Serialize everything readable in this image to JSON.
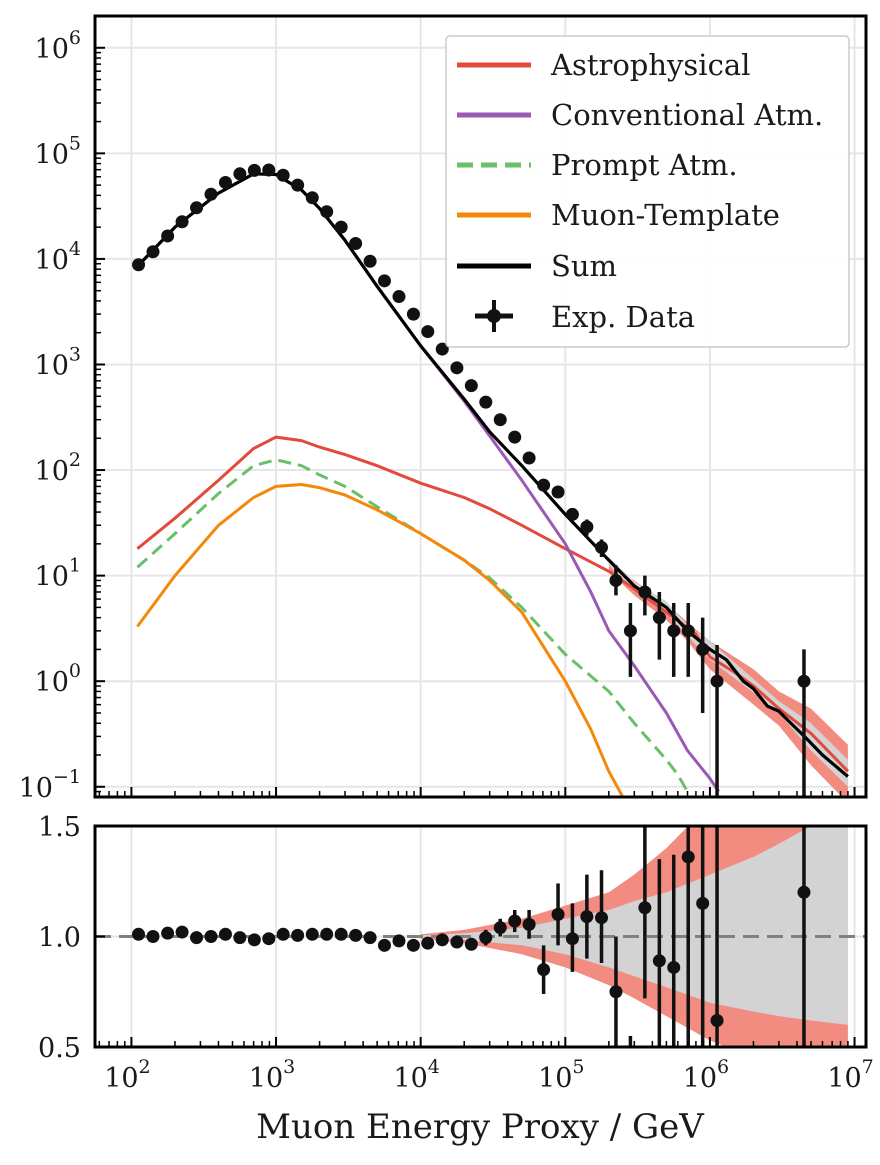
{
  "chart_data": [
    {
      "type": "line",
      "panel": "main",
      "xscale": "log",
      "yscale": "log",
      "xlim": [
        56,
        12000000
      ],
      "ylim": [
        0.08,
        2000000
      ],
      "grid": true,
      "legend_position": "top-right",
      "y_ticks": [
        {
          "value": 0.1,
          "base": "10",
          "exp": "−1"
        },
        {
          "value": 1,
          "base": "10",
          "exp": "0"
        },
        {
          "value": 10,
          "base": "10",
          "exp": "1"
        },
        {
          "value": 100,
          "base": "10",
          "exp": "2"
        },
        {
          "value": 1000,
          "base": "10",
          "exp": "3"
        },
        {
          "value": 10000,
          "base": "10",
          "exp": "4"
        },
        {
          "value": 100000,
          "base": "10",
          "exp": "5"
        },
        {
          "value": 1000000,
          "base": "10",
          "exp": "6"
        }
      ],
      "series": [
        {
          "name": "Astrophysical",
          "color": "#e24a3b",
          "style": "solid",
          "x": [
            110,
            200,
            400,
            700,
            1000,
            1500,
            2000,
            3000,
            5000,
            10000,
            20000,
            30000,
            50000,
            100000,
            200000,
            300000,
            500000,
            800000,
            1000000,
            1500000,
            2000000,
            3000000,
            5000000,
            9000000
          ],
          "y": [
            18,
            35,
            80,
            160,
            205,
            190,
            165,
            140,
            110,
            75,
            55,
            43,
            30,
            18,
            11,
            7.5,
            4.5,
            2.8,
            1.7,
            1.2,
            0.9,
            0.55,
            0.32,
            0.14
          ]
        },
        {
          "name": "Conventional Atm.",
          "color": "#9b59b6",
          "style": "solid",
          "x": [
            110,
            200,
            400,
            700,
            1000,
            1500,
            2000,
            3000,
            5000,
            10000,
            20000,
            30000,
            50000,
            100000,
            150000,
            200000,
            300000,
            500000,
            700000,
            1000000,
            1150000
          ],
          "y": [
            8500,
            20000,
            42000,
            64000,
            63000,
            45000,
            30000,
            15000,
            5500,
            1500,
            450,
            210,
            80,
            20,
            7,
            3,
            1.4,
            0.5,
            0.22,
            0.12,
            0.09
          ]
        },
        {
          "name": "Prompt Atm.",
          "color": "#6abf69",
          "style": "dashed",
          "x": [
            110,
            200,
            400,
            700,
            1000,
            1500,
            2000,
            3000,
            5000,
            10000,
            20000,
            30000,
            50000,
            100000,
            200000,
            300000,
            500000,
            600000,
            700000
          ],
          "y": [
            12,
            25,
            60,
            110,
            125,
            110,
            90,
            70,
            45,
            25,
            14,
            9.5,
            5,
            1.8,
            0.8,
            0.4,
            0.18,
            0.13,
            0.09
          ]
        },
        {
          "name": "Muon-Template",
          "color": "#f5880a",
          "style": "solid",
          "x": [
            110,
            200,
            400,
            700,
            1000,
            1500,
            2000,
            3000,
            5000,
            10000,
            20000,
            30000,
            50000,
            100000,
            150000,
            200000,
            250000
          ],
          "y": [
            3.3,
            10,
            30,
            55,
            70,
            73,
            68,
            58,
            42,
            25,
            14,
            9,
            4.5,
            1,
            0.35,
            0.14,
            0.08
          ]
        },
        {
          "name": "Sum",
          "color": "#000000",
          "style": "solid",
          "x": [
            110,
            200,
            400,
            700,
            1000,
            1500,
            2000,
            3000,
            5000,
            10000,
            20000,
            30000,
            50000,
            100000,
            200000,
            300000,
            500000,
            700000,
            1000000,
            1300000,
            1700000,
            2000000,
            2500000,
            3000000,
            3500000,
            4500000,
            6000000,
            9000000
          ],
          "y": [
            8500,
            20000,
            42000,
            64000,
            63000,
            45000,
            30000,
            15000,
            5500,
            1500,
            470,
            230,
            110,
            38,
            14,
            8,
            5,
            3,
            2,
            1.6,
            1,
            0.85,
            0.58,
            0.52,
            0.42,
            0.3,
            0.2,
            0.125
          ]
        }
      ],
      "bands": [
        {
          "name": "Astrophysical uncertainty",
          "color": "#f28b80",
          "x": [
            200000,
            300000,
            500000,
            700000,
            1000000,
            2000000,
            3000000,
            5000000,
            9000000
          ],
          "lower": [
            11,
            6.5,
            3.8,
            2.4,
            1.3,
            0.6,
            0.38,
            0.16,
            0.07
          ],
          "upper": [
            13,
            9,
            5.5,
            3.6,
            2.4,
            1.3,
            0.8,
            0.55,
            0.25
          ]
        },
        {
          "name": "Sum uncertainty",
          "color": "#d3d3d3",
          "x": [
            200000,
            300000,
            500000,
            700000,
            1000000,
            2000000,
            3000000,
            5000000,
            9000000
          ],
          "lower": [
            12.5,
            7.3,
            4.4,
            2.7,
            1.6,
            0.78,
            0.5,
            0.22,
            0.1
          ],
          "upper": [
            15,
            8.8,
            5.7,
            3.4,
            2.4,
            1.05,
            0.65,
            0.4,
            0.18
          ]
        }
      ],
      "data_points": {
        "name": "Exp. Data",
        "color": "#111111",
        "points": [
          {
            "x": 112,
            "y": 8800
          },
          {
            "x": 141,
            "y": 11700
          },
          {
            "x": 178,
            "y": 16500
          },
          {
            "x": 224,
            "y": 22500
          },
          {
            "x": 282,
            "y": 30500
          },
          {
            "x": 355,
            "y": 41000
          },
          {
            "x": 447,
            "y": 53000
          },
          {
            "x": 562,
            "y": 64000
          },
          {
            "x": 708,
            "y": 69000
          },
          {
            "x": 891,
            "y": 69500
          },
          {
            "x": 1120,
            "y": 62000
          },
          {
            "x": 1410,
            "y": 50000
          },
          {
            "x": 1780,
            "y": 38000
          },
          {
            "x": 2240,
            "y": 28000
          },
          {
            "x": 2820,
            "y": 20000
          },
          {
            "x": 3550,
            "y": 14000
          },
          {
            "x": 4470,
            "y": 9500
          },
          {
            "x": 5620,
            "y": 6200
          },
          {
            "x": 7080,
            "y": 4400
          },
          {
            "x": 8910,
            "y": 3000
          },
          {
            "x": 11200,
            "y": 2050
          },
          {
            "x": 14100,
            "y": 1400
          },
          {
            "x": 17800,
            "y": 930
          },
          {
            "x": 22400,
            "y": 630
          },
          {
            "x": 28200,
            "y": 440
          },
          {
            "x": 35500,
            "y": 300
          },
          {
            "x": 44700,
            "y": 205
          },
          {
            "x": 56200,
            "y": 130
          },
          {
            "x": 70800,
            "y": 72
          },
          {
            "x": 89100,
            "y": 62
          },
          {
            "x": 112000,
            "y": 38
          },
          {
            "x": 141000,
            "y": 29,
            "lo": 24,
            "hi": 34
          },
          {
            "x": 178000,
            "y": 18.5,
            "lo": 15,
            "hi": 22
          },
          {
            "x": 224000,
            "y": 9,
            "lo": 6.5,
            "hi": 12.5
          },
          {
            "x": 282000,
            "y": 3,
            "lo": 1.1,
            "hi": 5.5
          },
          {
            "x": 355000,
            "y": 7,
            "lo": 4.2,
            "hi": 10
          },
          {
            "x": 447000,
            "y": 4,
            "lo": 1.6,
            "hi": 7
          },
          {
            "x": 562000,
            "y": 3,
            "lo": 1.1,
            "hi": 5.5
          },
          {
            "x": 708000,
            "y": 3,
            "lo": 1.1,
            "hi": 5.5
          },
          {
            "x": 891000,
            "y": 2,
            "lo": 0.5,
            "hi": 4
          },
          {
            "x": 1120000,
            "y": 1,
            "lo": 0.08,
            "hi": 2.2
          },
          {
            "x": 4470000,
            "y": 1,
            "lo": 0.08,
            "hi": 2
          }
        ]
      }
    },
    {
      "type": "line",
      "panel": "ratio",
      "xscale": "log",
      "yscale": "linear",
      "xlim": [
        56,
        12000000
      ],
      "ylim": [
        0.5,
        1.5
      ],
      "y_ticks": [
        0.5,
        1.0,
        1.5
      ],
      "y_tick_labels": [
        "0.5",
        "1.0",
        "1.5"
      ],
      "x_ticks": [
        {
          "value": 100,
          "base": "10",
          "exp": "2"
        },
        {
          "value": 1000,
          "base": "10",
          "exp": "3"
        },
        {
          "value": 10000,
          "base": "10",
          "exp": "4"
        },
        {
          "value": 100000,
          "base": "10",
          "exp": "5"
        },
        {
          "value": 1000000,
          "base": "10",
          "exp": "6"
        },
        {
          "value": 10000000,
          "base": "10",
          "exp": "7"
        }
      ],
      "xlabel": "Muon Energy Proxy / GeV",
      "reference_line": {
        "y": 1.0,
        "color": "#808080",
        "style": "dashed"
      },
      "bands": [
        {
          "name": "Astrophysical uncertainty",
          "color": "#f28b80",
          "x": [
            10000,
            20000,
            50000,
            100000,
            200000,
            300000,
            500000,
            1000000,
            2000000,
            3000000,
            5000000,
            9000000
          ],
          "lower": [
            0.99,
            0.97,
            0.92,
            0.86,
            0.78,
            0.72,
            0.64,
            0.53,
            0.45,
            0.4,
            0.36,
            0.3
          ],
          "upper": [
            1.01,
            1.03,
            1.08,
            1.14,
            1.2,
            1.28,
            1.4,
            1.6,
            1.8,
            1.95,
            2.1,
            2.3
          ]
        },
        {
          "name": "Sum uncertainty",
          "color": "#d3d3d3",
          "x": [
            10000,
            20000,
            50000,
            100000,
            200000,
            300000,
            500000,
            1000000,
            2000000,
            3000000,
            5000000,
            9000000
          ],
          "lower": [
            0.995,
            0.985,
            0.96,
            0.92,
            0.86,
            0.82,
            0.77,
            0.7,
            0.66,
            0.64,
            0.62,
            0.6
          ],
          "upper": [
            1.005,
            1.015,
            1.04,
            1.08,
            1.12,
            1.16,
            1.2,
            1.28,
            1.36,
            1.42,
            1.5,
            1.6
          ]
        }
      ],
      "data_points": {
        "name": "Exp. Data",
        "color": "#111111",
        "points": [
          {
            "x": 112,
            "y": 1.01
          },
          {
            "x": 141,
            "y": 1.0
          },
          {
            "x": 178,
            "y": 1.015
          },
          {
            "x": 224,
            "y": 1.02
          },
          {
            "x": 282,
            "y": 0.995
          },
          {
            "x": 355,
            "y": 1.0
          },
          {
            "x": 447,
            "y": 1.01
          },
          {
            "x": 562,
            "y": 0.995
          },
          {
            "x": 708,
            "y": 0.985
          },
          {
            "x": 891,
            "y": 0.99
          },
          {
            "x": 1120,
            "y": 1.01
          },
          {
            "x": 1410,
            "y": 1.005
          },
          {
            "x": 1780,
            "y": 1.01
          },
          {
            "x": 2240,
            "y": 1.01
          },
          {
            "x": 2820,
            "y": 1.01
          },
          {
            "x": 3550,
            "y": 1.005
          },
          {
            "x": 4470,
            "y": 0.995
          },
          {
            "x": 5620,
            "y": 0.96
          },
          {
            "x": 7080,
            "y": 0.98
          },
          {
            "x": 8910,
            "y": 0.96
          },
          {
            "x": 11200,
            "y": 0.97
          },
          {
            "x": 14100,
            "y": 0.985
          },
          {
            "x": 17800,
            "y": 0.975
          },
          {
            "x": 22400,
            "y": 0.965
          },
          {
            "x": 28200,
            "y": 0.995,
            "lo": 0.96,
            "hi": 1.03
          },
          {
            "x": 35500,
            "y": 1.04,
            "lo": 1.0,
            "hi": 1.08
          },
          {
            "x": 44700,
            "y": 1.07,
            "lo": 1.02,
            "hi": 1.12
          },
          {
            "x": 56200,
            "y": 1.055,
            "lo": 0.99,
            "hi": 1.12
          },
          {
            "x": 70800,
            "y": 0.85,
            "lo": 0.74,
            "hi": 0.96
          },
          {
            "x": 89100,
            "y": 1.1,
            "lo": 0.96,
            "hi": 1.24
          },
          {
            "x": 112000,
            "y": 0.99,
            "lo": 0.84,
            "hi": 1.15
          },
          {
            "x": 141000,
            "y": 1.09,
            "lo": 0.9,
            "hi": 1.28
          },
          {
            "x": 178000,
            "y": 1.085,
            "lo": 0.88,
            "hi": 1.3
          },
          {
            "x": 224000,
            "y": 0.75,
            "lo": 0.5,
            "hi": 1.0
          },
          {
            "x": 282000,
            "y": 0.4,
            "lo": 0.0,
            "hi": 0.55
          },
          {
            "x": 355000,
            "y": 1.13,
            "lo": 0.72,
            "hi": 1.55
          },
          {
            "x": 447000,
            "y": 0.89,
            "lo": 0.45,
            "hi": 1.35
          },
          {
            "x": 562000,
            "y": 0.86,
            "lo": 0.35,
            "hi": 1.37
          },
          {
            "x": 708000,
            "y": 1.36,
            "lo": 0.5,
            "hi": 1.5
          },
          {
            "x": 891000,
            "y": 1.15,
            "lo": 0.3,
            "hi": 1.5
          },
          {
            "x": 1120000,
            "y": 0.62,
            "lo": 0.0,
            "hi": 1.5
          },
          {
            "x": 4470000,
            "y": 1.2,
            "lo": 0.0,
            "hi": 1.5
          }
        ]
      }
    }
  ]
}
